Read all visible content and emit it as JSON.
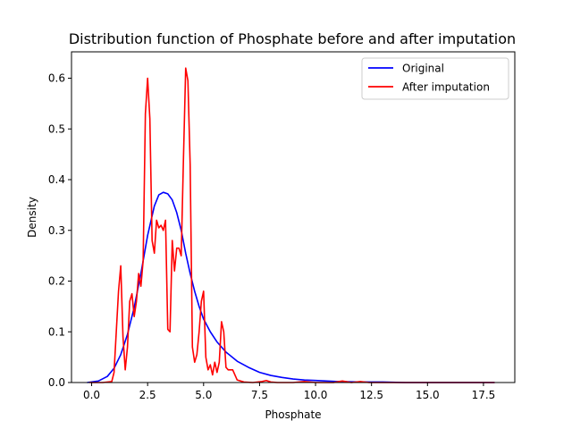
{
  "chart_data": {
    "type": "line",
    "title": "Distribution function of Phosphate before and after imputation",
    "xlabel": "Phosphate",
    "ylabel": "Density",
    "xlim": [
      -0.9,
      18.9
    ],
    "ylim": [
      0,
      0.652
    ],
    "xticks": [
      0.0,
      2.5,
      5.0,
      7.5,
      10.0,
      12.5,
      15.0,
      17.5
    ],
    "xtick_labels": [
      "0.0",
      "2.5",
      "5.0",
      "7.5",
      "10.0",
      "12.5",
      "15.0",
      "17.5"
    ],
    "yticks": [
      0.0,
      0.1,
      0.2,
      0.3,
      0.4,
      0.5,
      0.6
    ],
    "ytick_labels": [
      "0.0",
      "0.1",
      "0.2",
      "0.3",
      "0.4",
      "0.5",
      "0.6"
    ],
    "grid": false,
    "legend_position": "top-right",
    "series": [
      {
        "name": "Original",
        "color": "#0000ff",
        "x": [
          -0.2,
          0.3,
          0.7,
          1.0,
          1.3,
          1.6,
          1.9,
          2.2,
          2.5,
          2.8,
          3.0,
          3.2,
          3.4,
          3.6,
          3.8,
          4.0,
          4.2,
          4.4,
          4.6,
          4.8,
          5.0,
          5.3,
          5.6,
          6.0,
          6.5,
          7.0,
          7.5,
          8.0,
          8.5,
          9.0,
          9.5,
          10.0,
          10.5,
          11.0,
          12.0,
          13.0,
          14.0,
          15.0,
          16.0,
          17.0,
          18.0
        ],
        "y": [
          0.0,
          0.003,
          0.012,
          0.028,
          0.055,
          0.095,
          0.148,
          0.215,
          0.29,
          0.348,
          0.37,
          0.375,
          0.372,
          0.36,
          0.335,
          0.3,
          0.255,
          0.215,
          0.18,
          0.15,
          0.125,
          0.1,
          0.08,
          0.06,
          0.042,
          0.03,
          0.02,
          0.014,
          0.01,
          0.007,
          0.005,
          0.004,
          0.003,
          0.002,
          0.001,
          0.001,
          0.0,
          0.0,
          0.0,
          0.0,
          0.0
        ]
      },
      {
        "name": "After imputation",
        "color": "#ff0000",
        "x": [
          -0.1,
          0.5,
          0.9,
          1.0,
          1.1,
          1.2,
          1.3,
          1.4,
          1.5,
          1.6,
          1.7,
          1.8,
          1.9,
          2.0,
          2.1,
          2.2,
          2.3,
          2.4,
          2.5,
          2.6,
          2.7,
          2.8,
          2.9,
          3.0,
          3.1,
          3.2,
          3.3,
          3.4,
          3.5,
          3.6,
          3.7,
          3.8,
          3.9,
          4.0,
          4.1,
          4.2,
          4.3,
          4.4,
          4.5,
          4.6,
          4.7,
          4.8,
          4.9,
          5.0,
          5.1,
          5.2,
          5.3,
          5.4,
          5.5,
          5.6,
          5.7,
          5.8,
          5.9,
          6.0,
          6.1,
          6.3,
          6.5,
          6.8,
          7.2,
          7.6,
          7.8,
          8.0,
          8.3,
          9.0,
          9.5,
          10.0,
          10.8,
          11.2,
          11.6,
          12.0,
          12.4,
          13.0,
          14.0,
          15.0,
          16.0,
          17.0,
          18.0
        ],
        "y": [
          0.0,
          0.0,
          0.002,
          0.02,
          0.1,
          0.18,
          0.23,
          0.09,
          0.025,
          0.07,
          0.16,
          0.175,
          0.13,
          0.16,
          0.215,
          0.19,
          0.24,
          0.53,
          0.6,
          0.52,
          0.28,
          0.255,
          0.32,
          0.305,
          0.31,
          0.3,
          0.32,
          0.105,
          0.1,
          0.28,
          0.22,
          0.265,
          0.265,
          0.25,
          0.44,
          0.62,
          0.595,
          0.43,
          0.07,
          0.04,
          0.055,
          0.1,
          0.16,
          0.18,
          0.05,
          0.025,
          0.035,
          0.015,
          0.04,
          0.02,
          0.04,
          0.12,
          0.1,
          0.03,
          0.025,
          0.025,
          0.005,
          0.001,
          0.0,
          0.002,
          0.004,
          0.001,
          0.0,
          0.0,
          0.002,
          0.0,
          0.0,
          0.003,
          0.0,
          0.002,
          0.0,
          0.0,
          0.0,
          0.0,
          0.0,
          0.0,
          0.0
        ]
      }
    ]
  }
}
